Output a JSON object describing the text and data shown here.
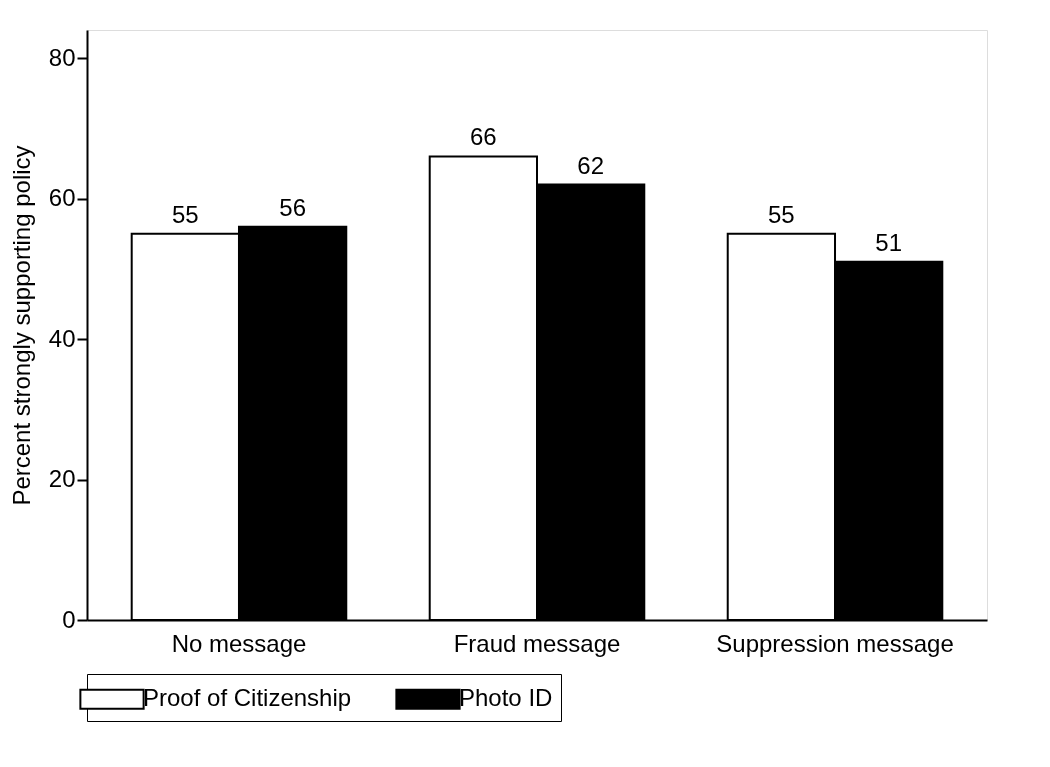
{
  "chart_data": {
    "type": "bar",
    "ylabel": "Percent strongly supporting policy",
    "categories": [
      "No message",
      "Fraud message",
      "Suppression message"
    ],
    "series": [
      {
        "name": "Proof of Citizenship",
        "color": "#ffffff",
        "values": [
          55,
          66,
          55
        ]
      },
      {
        "name": "Photo ID",
        "color": "#000000",
        "values": [
          56,
          62,
          51
        ]
      }
    ],
    "ylim": [
      0,
      84
    ],
    "yticks": [
      0,
      20,
      40,
      60,
      80
    ],
    "grid": false,
    "legend": "bottom",
    "data_labels": true
  }
}
